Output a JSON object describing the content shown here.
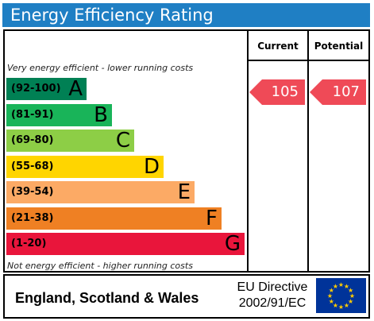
{
  "header": {
    "title": "Energy Efficiency Rating",
    "color": "#1f7fc4"
  },
  "columns": {
    "current": "Current",
    "potential": "Potential"
  },
  "notes": {
    "top": "Very energy efficient - lower running costs",
    "bottom": "Not energy efficient - higher running costs"
  },
  "bands": [
    {
      "range": "(92-100)",
      "letter": "A",
      "color": "#008054"
    },
    {
      "range": "(81-91)",
      "letter": "B",
      "color": "#19b459"
    },
    {
      "range": "(69-80)",
      "letter": "C",
      "color": "#8dce46"
    },
    {
      "range": "(55-68)",
      "letter": "D",
      "color": "#ffd500"
    },
    {
      "range": "(39-54)",
      "letter": "E",
      "color": "#fcaa65"
    },
    {
      "range": "(21-38)",
      "letter": "F",
      "color": "#ef8023"
    },
    {
      "range": "(1-20)",
      "letter": "G",
      "color": "#e9153b"
    }
  ],
  "ratings": {
    "current": {
      "value": "105",
      "color": "#ef4a57"
    },
    "potential": {
      "value": "107",
      "color": "#ef4a57"
    }
  },
  "footer": {
    "country": "England, Scotland & Wales",
    "directive_line1": "EU Directive",
    "directive_line2": "2002/91/EC"
  },
  "chart_data": {
    "type": "bar",
    "title": "Energy Efficiency Rating",
    "categories": [
      "A",
      "B",
      "C",
      "D",
      "E",
      "F",
      "G"
    ],
    "ranges": [
      "(92-100)",
      "(81-91)",
      "(69-80)",
      "(55-68)",
      "(39-54)",
      "(21-38)",
      "(1-20)"
    ],
    "current": 105,
    "potential": 107
  }
}
